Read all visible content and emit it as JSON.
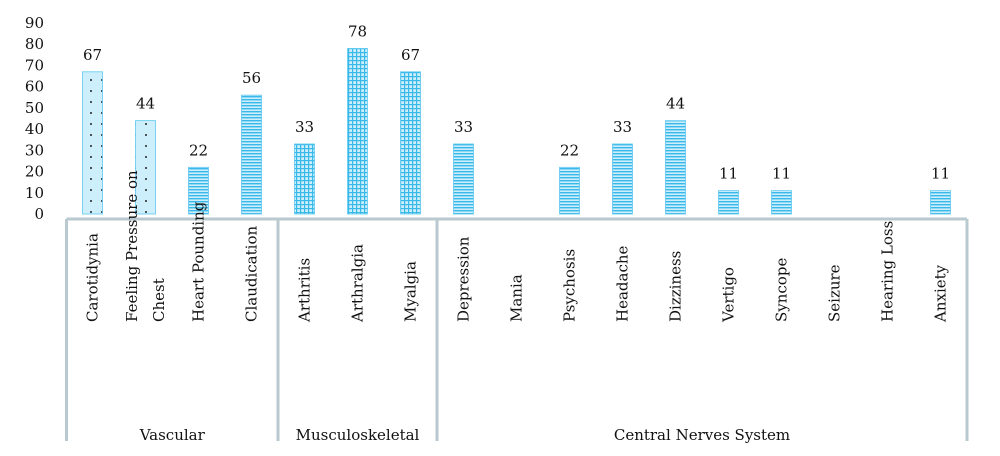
{
  "chart_data": {
    "type": "bar",
    "ylim": [
      0,
      90
    ],
    "yticks": [
      0,
      10,
      20,
      30,
      40,
      50,
      60,
      70,
      80,
      90
    ],
    "categories": [
      "Carotidynia",
      "Feeling Pressure on Chest",
      "Heart Pounding",
      "Claudication",
      "Arthritis",
      "Arthralgia",
      "Myalgia",
      "Depression",
      "Mania",
      "Psychosis",
      "Headache",
      "Dizziness",
      "Vertigo",
      "Syncope",
      "Seizure",
      "Hearing Loss",
      "Anxiety"
    ],
    "category_lines": [
      [
        "Carotidynia"
      ],
      [
        "Feeling Pressure on",
        "Chest"
      ],
      [
        "Heart Pounding"
      ],
      [
        "Claudication"
      ],
      [
        "Arthritis"
      ],
      [
        "Arthralgia"
      ],
      [
        "Myalgia"
      ],
      [
        "Depression"
      ],
      [
        "Mania"
      ],
      [
        "Psychosis"
      ],
      [
        "Headache"
      ],
      [
        "Dizziness"
      ],
      [
        "Vertigo"
      ],
      [
        "Syncope"
      ],
      [
        "Seizure"
      ],
      [
        "Hearing Loss"
      ],
      [
        "Anxiety"
      ]
    ],
    "values": [
      67,
      44,
      22,
      56,
      33,
      78,
      67,
      33,
      0,
      22,
      33,
      44,
      11,
      11,
      0,
      0,
      11
    ],
    "data_labels": [
      "67",
      "44",
      "22",
      "56",
      "33",
      "78",
      "67",
      "33",
      "",
      "22",
      "33",
      "44",
      "11",
      "11",
      "",
      "",
      "11"
    ],
    "patterns": [
      "dots",
      "dots",
      "hlines",
      "hlines",
      "grid",
      "grid",
      "grid",
      "hlines",
      "hlines",
      "hlines",
      "hlines",
      "hlines",
      "hlines",
      "hlines",
      "hlines",
      "hlines",
      "hlines"
    ],
    "groups": [
      {
        "name": "Vascular",
        "start": 0,
        "end": 3
      },
      {
        "name": "Musculoskeletal",
        "start": 4,
        "end": 6
      },
      {
        "name": "Central Nerves System",
        "start": 7,
        "end": 16
      }
    ],
    "colors": {
      "bar_fill": "#cdeefb",
      "bar_stroke": "#5ec8f0",
      "pattern": "#38b9ea",
      "dots": "#222222",
      "axis": "#b8c9cf"
    },
    "grid": false,
    "legend": "none"
  }
}
